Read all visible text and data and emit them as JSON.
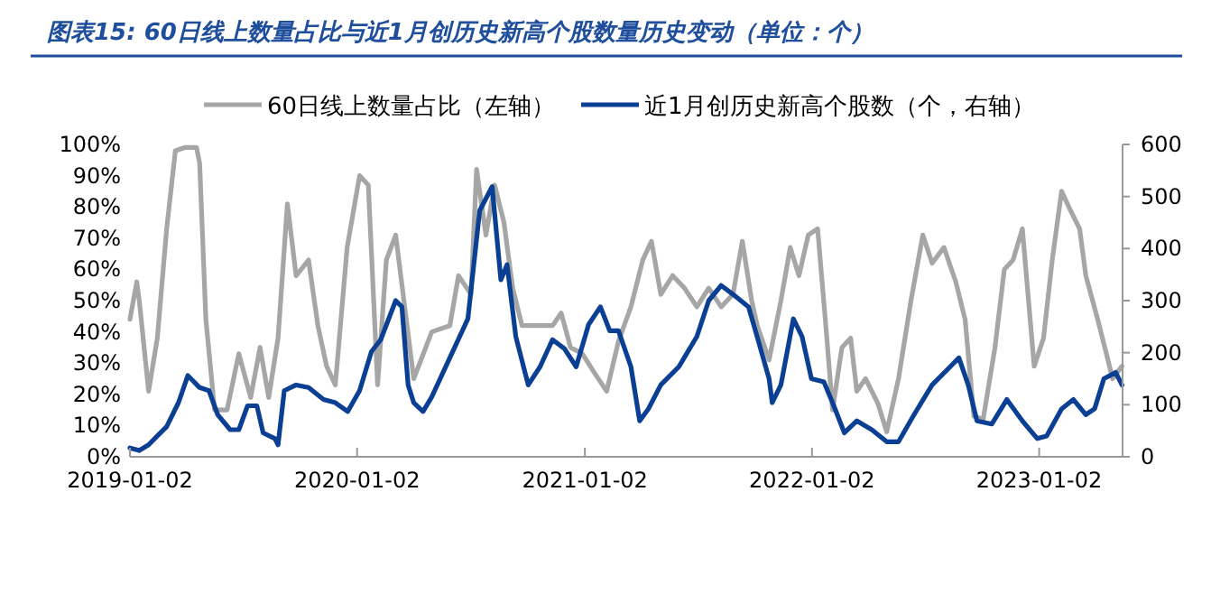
{
  "chart_data": {
    "type": "line",
    "title": "图表15:  60日线上数量占比与近1月创历史新高个股数量历史变动（单位：个）",
    "legend": "top",
    "grid": false,
    "line_style": "solid",
    "marker": "none",
    "xlim": [
      "2019-01-02",
      "2023-05-16"
    ],
    "xticks": [
      "2019-01-02",
      "2020-01-02",
      "2021-01-02",
      "2022-01-02",
      "2023-01-02"
    ],
    "ylim": [
      0,
      100
    ],
    "yticks": [
      {
        "value": 0,
        "label": "0%"
      },
      {
        "value": 10,
        "label": "10%"
      },
      {
        "value": 20,
        "label": "20%"
      },
      {
        "value": 30,
        "label": "30%"
      },
      {
        "value": 40,
        "label": "40%"
      },
      {
        "value": 50,
        "label": "50%"
      },
      {
        "value": 60,
        "label": "60%"
      },
      {
        "value": 70,
        "label": "70%"
      },
      {
        "value": 80,
        "label": "80%"
      },
      {
        "value": 90,
        "label": "90%"
      },
      {
        "value": 100,
        "label": "100%"
      }
    ],
    "y2lim": [
      0,
      600
    ],
    "y2ticks": [
      0,
      100,
      200,
      300,
      400,
      500,
      600
    ],
    "series": [
      {
        "name": "60日线上数量占比（左轴）",
        "color": "#a6a6a6",
        "x": [
          "2019-01-02",
          "2019-01-13",
          "2019-01-17",
          "2019-02-01",
          "2019-02-15",
          "2019-03-02",
          "2019-03-16",
          "2019-03-31",
          "2019-04-19",
          "2019-04-24",
          "2019-05-04",
          "2019-05-18",
          "2019-06-07",
          "2019-06-26",
          "2019-07-15",
          "2019-07-30",
          "2019-08-13",
          "2019-08-28",
          "2019-09-12",
          "2019-09-26",
          "2019-10-16",
          "2019-10-31",
          "2019-11-14",
          "2019-11-28",
          "2019-12-17",
          "2020-01-06",
          "2020-01-20",
          "2020-02-04",
          "2020-02-18",
          "2020-03-04",
          "2020-04-02",
          "2020-05-01",
          "2020-05-30",
          "2020-06-13",
          "2020-07-03",
          "2020-07-12",
          "2020-07-27",
          "2020-08-10",
          "2020-08-25",
          "2020-09-08",
          "2020-09-23",
          "2020-10-13",
          "2020-11-11",
          "2020-11-25",
          "2020-12-10",
          "2020-12-29",
          "2021-01-17",
          "2021-02-06",
          "2021-02-25",
          "2021-03-17",
          "2021-04-05",
          "2021-04-19",
          "2021-05-04",
          "2021-05-23",
          "2021-06-11",
          "2021-07-01",
          "2021-07-20",
          "2021-08-09",
          "2021-08-28",
          "2021-09-12",
          "2021-09-27",
          "2021-10-06",
          "2021-10-25",
          "2021-11-13",
          "2021-11-28",
          "2021-12-12",
          "2021-12-27",
          "2022-01-11",
          "2022-01-25",
          "2022-02-04",
          "2022-02-19",
          "2022-03-05",
          "2022-03-15",
          "2022-03-29",
          "2022-04-18",
          "2022-05-02",
          "2022-05-21",
          "2022-06-10",
          "2022-06-29",
          "2022-07-14",
          "2022-08-02",
          "2022-08-21",
          "2022-09-05",
          "2022-09-19",
          "2022-10-04",
          "2022-10-23",
          "2022-11-07",
          "2022-11-21",
          "2022-12-06",
          "2022-12-25",
          "2023-01-09",
          "2023-01-23",
          "2023-02-07",
          "2023-02-21",
          "2023-03-08",
          "2023-03-18",
          "2023-04-06",
          "2023-04-20",
          "2023-04-30",
          "2023-05-15"
        ],
        "values": [
          44,
          56,
          50,
          21,
          38,
          73,
          98,
          99,
          99,
          94,
          44,
          15,
          15,
          33,
          19,
          35,
          19,
          38,
          81,
          58,
          63,
          42,
          29,
          23,
          67,
          90,
          87,
          23,
          63,
          71,
          25,
          40,
          42,
          58,
          52,
          92,
          71,
          87,
          75,
          54,
          42,
          42,
          42,
          46,
          35,
          33,
          27,
          21,
          37,
          48,
          63,
          69,
          52,
          58,
          54,
          48,
          54,
          48,
          52,
          69,
          50,
          42,
          31,
          50,
          67,
          58,
          71,
          73,
          40,
          15,
          35,
          38,
          21,
          25,
          17,
          8,
          25,
          50,
          71,
          62,
          67,
          56,
          44,
          13,
          12,
          35,
          60,
          63,
          73,
          29,
          38,
          63,
          85,
          79,
          73,
          58,
          44,
          33,
          25,
          29
        ]
      },
      {
        "name": "近1月创历史新高个股数（个，右轴）",
        "color": "#0b3f94",
        "axis": "y2",
        "x": [
          "2019-01-02",
          "2019-01-17",
          "2019-02-01",
          "2019-02-15",
          "2019-03-02",
          "2019-03-21",
          "2019-04-05",
          "2019-04-24",
          "2019-05-09",
          "2019-05-23",
          "2019-06-12",
          "2019-06-26",
          "2019-07-10",
          "2019-07-25",
          "2019-08-04",
          "2019-08-23",
          "2019-08-28",
          "2019-09-07",
          "2019-09-26",
          "2019-10-16",
          "2019-11-09",
          "2019-11-28",
          "2019-12-18",
          "2020-01-06",
          "2020-01-25",
          "2020-02-09",
          "2020-03-04",
          "2020-03-14",
          "2020-03-24",
          "2020-04-02",
          "2020-04-17",
          "2020-05-01",
          "2020-05-30",
          "2020-06-28",
          "2020-07-17",
          "2020-08-06",
          "2020-08-20",
          "2020-08-30",
          "2020-09-13",
          "2020-10-03",
          "2020-10-22",
          "2020-11-11",
          "2020-11-30",
          "2020-12-19",
          "2021-01-08",
          "2021-01-27",
          "2021-02-11",
          "2021-02-25",
          "2021-03-17",
          "2021-03-31",
          "2021-04-14",
          "2021-05-04",
          "2021-06-02",
          "2021-07-01",
          "2021-07-20",
          "2021-08-09",
          "2021-08-28",
          "2021-09-22",
          "2021-10-06",
          "2021-10-25",
          "2021-10-30",
          "2021-11-13",
          "2021-12-03",
          "2021-12-17",
          "2022-01-01",
          "2022-01-21",
          "2022-02-04",
          "2022-02-23",
          "2022-03-15",
          "2022-04-08",
          "2022-05-02",
          "2022-05-21",
          "2022-06-15",
          "2022-07-14",
          "2022-08-12",
          "2022-08-26",
          "2022-09-10",
          "2022-09-24",
          "2022-10-18",
          "2022-11-11",
          "2022-12-06",
          "2022-12-30",
          "2023-01-14",
          "2023-02-07",
          "2023-02-26",
          "2023-03-18",
          "2023-04-01",
          "2023-04-16",
          "2023-05-05",
          "2023-05-15"
        ],
        "values": [
          17,
          12,
          23,
          40,
          58,
          104,
          156,
          133,
          127,
          81,
          52,
          52,
          98,
          98,
          46,
          35,
          23,
          127,
          138,
          133,
          110,
          104,
          87,
          127,
          202,
          225,
          300,
          288,
          138,
          104,
          87,
          115,
          190,
          265,
          473,
          519,
          340,
          369,
          231,
          138,
          173,
          225,
          208,
          173,
          254,
          288,
          242,
          242,
          173,
          69,
          92,
          138,
          173,
          231,
          300,
          329,
          312,
          288,
          230,
          150,
          104,
          138,
          265,
          231,
          150,
          144,
          104,
          46,
          69,
          52,
          29,
          29,
          81,
          138,
          173,
          190,
          138,
          69,
          63,
          110,
          69,
          35,
          40,
          92,
          110,
          81,
          92,
          150,
          162,
          138
        ]
      }
    ]
  }
}
